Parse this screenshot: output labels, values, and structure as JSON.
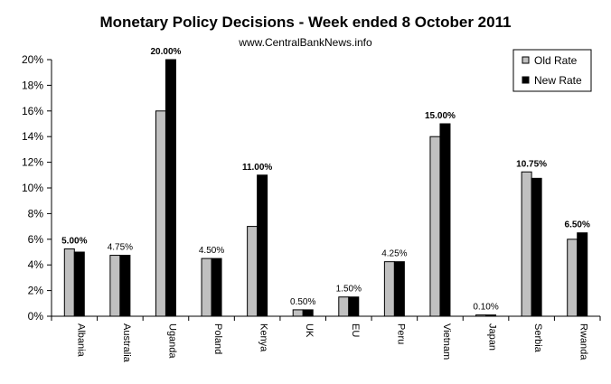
{
  "chart_data": {
    "type": "bar",
    "title": "Monetary Policy Decisions - Week ended  8 October 2011",
    "subtitle": "www.CentralBankNews.info",
    "xlabel": "",
    "ylabel": "",
    "ylim": [
      0,
      20
    ],
    "y_ticks": [
      "0%",
      "2%",
      "4%",
      "6%",
      "8%",
      "10%",
      "12%",
      "14%",
      "16%",
      "18%",
      "20%"
    ],
    "y_tick_values": [
      0,
      2,
      4,
      6,
      8,
      10,
      12,
      14,
      16,
      18,
      20
    ],
    "categories": [
      "Albania",
      "Australia",
      "Uganda",
      "Poland",
      "Kenya",
      "UK",
      "EU",
      "Peru",
      "Vietnam",
      "Japan",
      "Serbia",
      "Rwanda"
    ],
    "series": [
      {
        "name": "Old Rate",
        "color": "#c0c0c0",
        "values": [
          5.25,
          4.75,
          16.0,
          4.5,
          7.0,
          0.5,
          1.5,
          4.25,
          14.0,
          0.1,
          11.25,
          6.0
        ]
      },
      {
        "name": "New Rate",
        "color": "#000000",
        "values": [
          5.0,
          4.75,
          20.0,
          4.5,
          11.0,
          0.5,
          1.5,
          4.25,
          15.0,
          0.1,
          10.75,
          6.5
        ]
      }
    ],
    "data_labels": [
      {
        "text": "5.00%",
        "bold": true
      },
      {
        "text": "4.75%",
        "bold": false
      },
      {
        "text": "20.00%",
        "bold": true
      },
      {
        "text": "4.50%",
        "bold": false
      },
      {
        "text": "11.00%",
        "bold": true
      },
      {
        "text": "0.50%",
        "bold": false
      },
      {
        "text": "1.50%",
        "bold": false
      },
      {
        "text": "4.25%",
        "bold": false
      },
      {
        "text": "15.00%",
        "bold": true
      },
      {
        "text": "0.10%",
        "bold": false
      },
      {
        "text": "10.75%",
        "bold": true
      },
      {
        "text": "6.50%",
        "bold": true
      }
    ],
    "legend": {
      "position": "top-right",
      "entries": [
        "Old Rate",
        "New Rate"
      ]
    },
    "grid": false
  }
}
